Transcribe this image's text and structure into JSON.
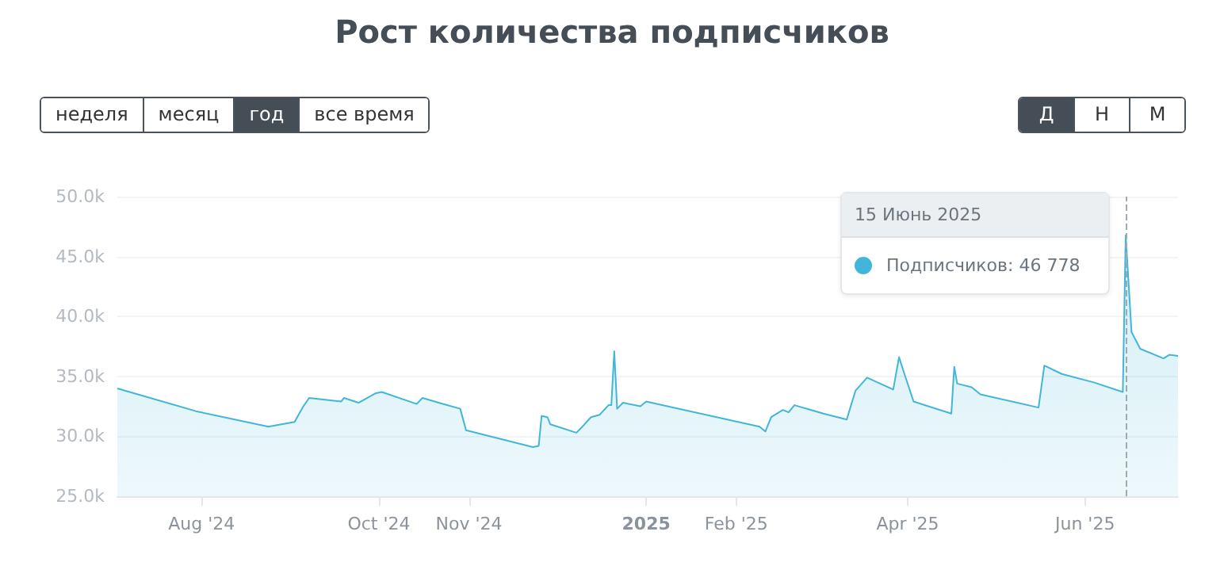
{
  "chart_data": {
    "type": "area",
    "title": "Рост количества подписчиков",
    "x": [
      "2024-07-03",
      "2024-07-30",
      "2024-08-24",
      "2024-09-02",
      "2024-09-05",
      "2024-09-07",
      "2024-09-18",
      "2024-09-19",
      "2024-09-24",
      "2024-09-30",
      "2024-10-02",
      "2024-10-14",
      "2024-10-16",
      "2024-10-23",
      "2024-10-29",
      "2024-10-31",
      "2024-11-23",
      "2024-11-25",
      "2024-11-26",
      "2024-11-28",
      "2024-11-29",
      "2024-12-08",
      "2024-12-10",
      "2024-12-13",
      "2024-12-16",
      "2024-12-19",
      "2024-12-20",
      "2024-12-21",
      "2024-12-22",
      "2024-12-24",
      "2024-12-30",
      "2025-01-01",
      "2025-02-09",
      "2025-02-11",
      "2025-02-13",
      "2025-02-17",
      "2025-02-19",
      "2025-02-21",
      "2025-03-03",
      "2025-03-11",
      "2025-03-14",
      "2025-03-18",
      "2025-03-27",
      "2025-03-29",
      "2025-03-31",
      "2025-04-03",
      "2025-04-16",
      "2025-04-17",
      "2025-04-18",
      "2025-04-23",
      "2025-04-26",
      "2025-05-16",
      "2025-05-18",
      "2025-05-24",
      "2025-06-04",
      "2025-06-14",
      "2025-06-15",
      "2025-06-17",
      "2025-06-20",
      "2025-06-28",
      "2025-06-30",
      "2025-07-03"
    ],
    "series": [
      {
        "color": "#41b6d9",
        "values": [
          34000,
          32100,
          30800,
          31200,
          32500,
          33200,
          32900,
          33200,
          32800,
          33600,
          33700,
          32700,
          33200,
          32700,
          32300,
          30500,
          29100,
          29200,
          31700,
          31600,
          31000,
          30300,
          30800,
          31600,
          31800,
          32600,
          32600,
          37100,
          32300,
          32800,
          32500,
          32900,
          30800,
          30400,
          31600,
          32200,
          32000,
          32600,
          31900,
          31400,
          33800,
          34900,
          33900,
          36600,
          35100,
          32900,
          31900,
          35800,
          34400,
          34100,
          33500,
          32400,
          35900,
          35200,
          34500,
          33700,
          46778,
          38700,
          37300,
          36500,
          36800,
          36700
        ]
      }
    ],
    "xlim": [
      "2024-07-03",
      "2025-07-03"
    ],
    "xticks": [
      {
        "value": "2024-08-01",
        "label": "Aug '24"
      },
      {
        "value": "2024-10-01",
        "label": "Oct '24"
      },
      {
        "value": "2024-11-01",
        "label": "Nov '24"
      },
      {
        "value": "2025-01-01",
        "label": "2025"
      },
      {
        "value": "2025-02-01",
        "label": "Feb '25"
      },
      {
        "value": "2025-04-01",
        "label": "Apr '25"
      },
      {
        "value": "2025-06-01",
        "label": "Jun '25"
      }
    ],
    "ylim": [
      25000,
      50000
    ],
    "yticks": [
      {
        "value": 25000,
        "label": "25.0k"
      },
      {
        "value": 30000,
        "label": "30.0k"
      },
      {
        "value": 35000,
        "label": "35.0k"
      },
      {
        "value": 40000,
        "label": "40.0k"
      },
      {
        "value": 45000,
        "label": "45.0k"
      },
      {
        "value": 50000,
        "label": "50.0k"
      }
    ],
    "grid": "y",
    "marker": "none",
    "line_style": "solid",
    "ref_lines": [
      {
        "axis": "x",
        "value": "2025-06-15",
        "label": null,
        "color": "#a0a8b0",
        "line_style": "dashed"
      }
    ],
    "annotations": [
      "неделя",
      "месяц",
      "год",
      "все время",
      "Д",
      "Н",
      "М",
      "15 Июнь 2025",
      "Подписчиков: 46 778"
    ]
  }
}
